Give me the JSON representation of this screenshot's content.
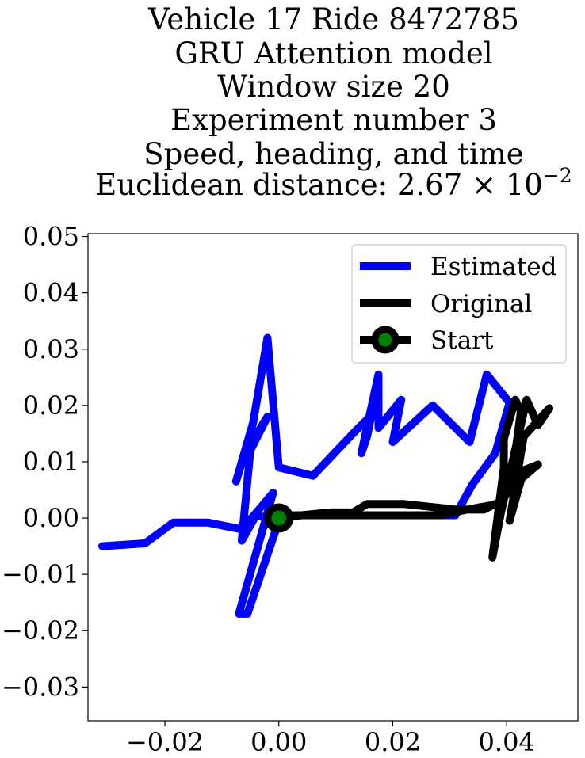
{
  "chart_data": {
    "type": "line",
    "title_lines": [
      "Vehicle 17 Ride 8472785",
      "GRU Attention model",
      "Window size 20",
      "Experiment number 3",
      "Speed, heading, and time",
      "Euclidean distance: 2.67×10⁻²"
    ],
    "title_math": {
      "prefix": "Euclidean distance: ",
      "mantissa": "2.67",
      "times": "×",
      "base": "10",
      "exponent": "−2"
    },
    "xlabel": "",
    "ylabel": "",
    "xlim": [
      -0.0335,
      0.0525
    ],
    "ylim": [
      -0.036,
      0.0505
    ],
    "xticks": [
      -0.02,
      0.0,
      0.02,
      0.04
    ],
    "xtick_labels": [
      "−0.02",
      "0.00",
      "0.02",
      "0.04"
    ],
    "yticks": [
      -0.03,
      -0.02,
      -0.01,
      0.0,
      0.01,
      0.02,
      0.03,
      0.04,
      0.05
    ],
    "ytick_labels": [
      "−0.03",
      "−0.02",
      "−0.01",
      "0.00",
      "0.01",
      "0.02",
      "0.03",
      "0.04",
      "0.05"
    ],
    "grid": false,
    "legend": {
      "position": "top-right",
      "entries": [
        {
          "label": "Estimated",
          "color": "#0000ff",
          "marker": "none"
        },
        {
          "label": "Original",
          "color": "#000000",
          "marker": "none"
        },
        {
          "label": "Start",
          "color": "#000000",
          "marker": "circle",
          "marker_face": "#008000"
        }
      ]
    },
    "series": [
      {
        "name": "Estimated",
        "color": "#0000ff",
        "points": [
          [
            -0.031,
            -0.005
          ],
          [
            -0.0235,
            -0.0045
          ],
          [
            -0.0185,
            -0.0008
          ],
          [
            -0.0125,
            -0.0008
          ],
          [
            -0.0065,
            -0.002
          ],
          [
            -0.0035,
            0.0015
          ],
          [
            -0.001,
            0.0045
          ],
          [
            -0.007,
            -0.017
          ],
          [
            -0.0055,
            -0.017
          ],
          [
            -0.0025,
            -0.008
          ],
          [
            0.0,
            -0.0005
          ],
          [
            -0.004,
            0.0005
          ],
          [
            -0.0065,
            -0.004
          ],
          [
            -0.005,
            0.012
          ],
          [
            -0.002,
            0.018
          ],
          [
            -0.006,
            0.0115
          ],
          [
            -0.0075,
            0.0065
          ],
          [
            -0.0045,
            0.017
          ],
          [
            -0.002,
            0.032
          ],
          [
            0.0,
            0.009
          ],
          [
            0.006,
            0.0075
          ],
          [
            0.0135,
            0.0155
          ],
          [
            0.0175,
            0.0195
          ],
          [
            0.0175,
            0.0245
          ],
          [
            0.0155,
            0.0145
          ],
          [
            0.0145,
            0.0115
          ],
          [
            0.0175,
            0.0255
          ],
          [
            0.0175,
            0.016
          ],
          [
            0.0215,
            0.021
          ],
          [
            0.02,
            0.0135
          ],
          [
            0.027,
            0.02
          ],
          [
            0.0335,
            0.0135
          ],
          [
            0.0365,
            0.0255
          ],
          [
            0.0405,
            0.0205
          ],
          [
            0.038,
            0.0115
          ],
          [
            0.034,
            0.006
          ],
          [
            0.031,
            0.0005
          ],
          [
            0.016,
            0.0005
          ],
          [
            0.009,
            0.0005
          ],
          [
            0.002,
            0.0005
          ]
        ]
      },
      {
        "name": "Original",
        "color": "#000000",
        "points": [
          [
            0.0,
            0.0
          ],
          [
            0.004,
            0.0005
          ],
          [
            0.009,
            0.001
          ],
          [
            0.013,
            0.001
          ],
          [
            0.0155,
            0.0025
          ],
          [
            0.0175,
            0.0025
          ],
          [
            0.022,
            0.0025
          ],
          [
            0.0265,
            0.002
          ],
          [
            0.031,
            0.0015
          ],
          [
            0.036,
            0.0015
          ],
          [
            0.039,
            0.003
          ],
          [
            0.0405,
            0.007
          ],
          [
            0.0415,
            0.0115
          ],
          [
            0.0425,
            0.019
          ],
          [
            0.0415,
            0.021
          ],
          [
            0.0395,
            0.014
          ],
          [
            0.0395,
            0.009
          ],
          [
            0.0375,
            -0.007
          ],
          [
            0.039,
            0.001
          ],
          [
            0.0435,
            0.021
          ],
          [
            0.0455,
            0.0165
          ],
          [
            0.0475,
            0.0195
          ],
          [
            0.043,
            0.0145
          ],
          [
            0.0405,
            -0.0005
          ],
          [
            0.043,
            0.0085
          ],
          [
            0.0455,
            0.0095
          ],
          [
            0.042,
            0.0065
          ],
          [
            0.0385,
            0.0025
          ],
          [
            0.033,
            0.0015
          ],
          [
            0.0285,
            0.0005
          ],
          [
            0.022,
            0.0005
          ],
          [
            0.016,
            0.0005
          ],
          [
            0.009,
            0.0005
          ],
          [
            0.003,
            0.0005
          ],
          [
            0.0,
            0.0
          ]
        ]
      }
    ],
    "start_point": [
      0.0,
      0.0
    ]
  }
}
